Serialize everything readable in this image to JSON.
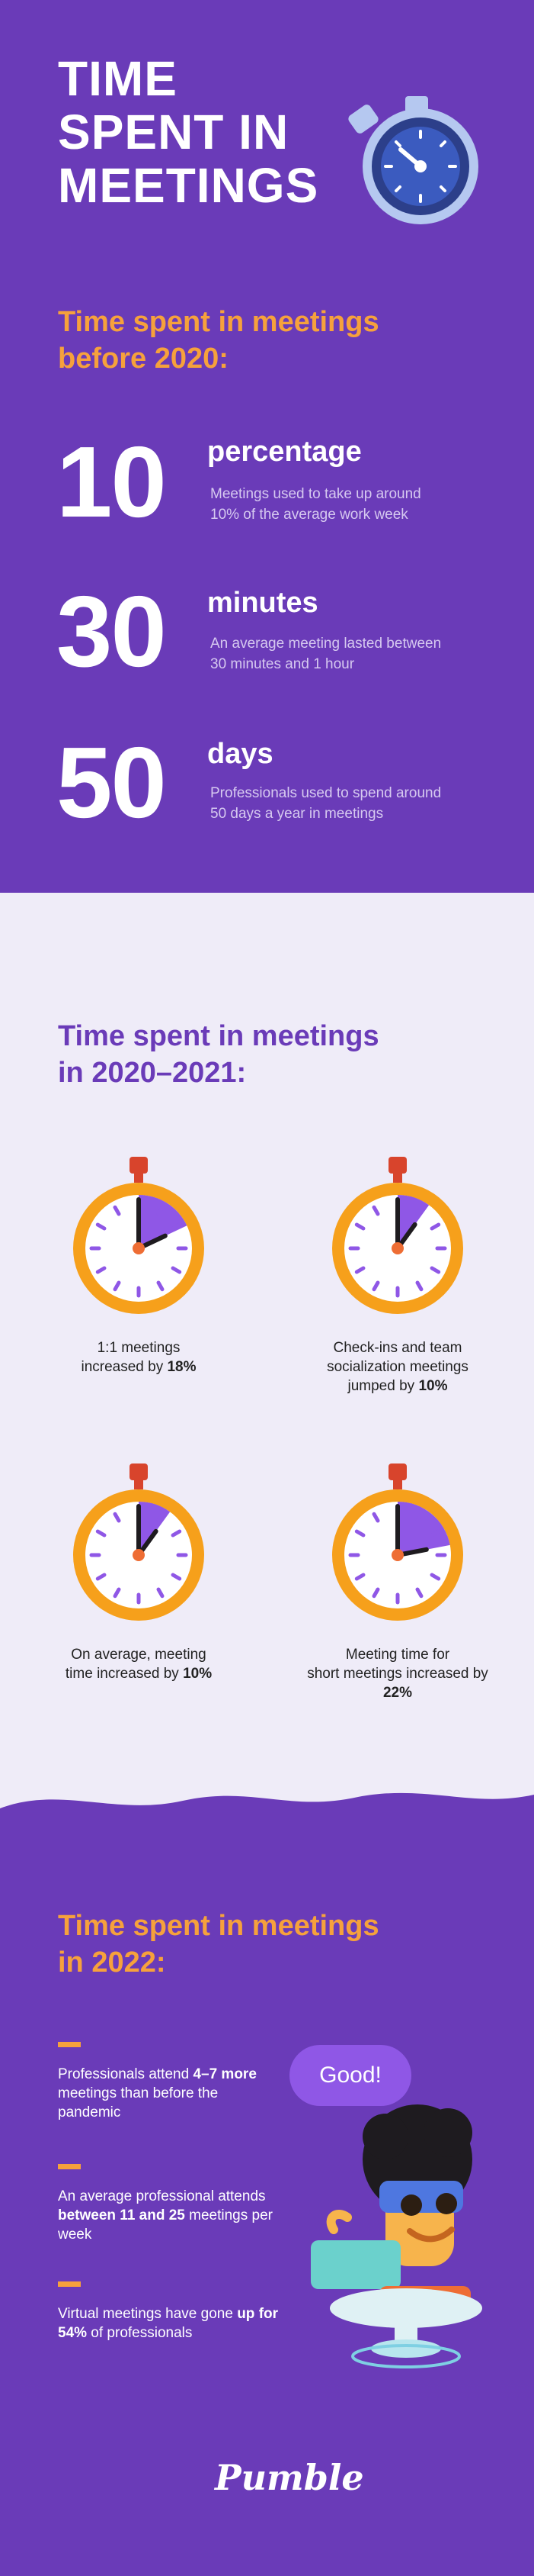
{
  "header": {
    "title_lines": [
      "TIME",
      "SPENT IN",
      "MEETINGS"
    ]
  },
  "before2020": {
    "heading_lines": [
      "Time spent in meetings",
      "before 2020:"
    ],
    "stats": [
      {
        "number": "10",
        "unit": "percentage",
        "desc_lines": [
          "Meetings used to take up around",
          "10% of the average work week"
        ]
      },
      {
        "number": "30",
        "unit": "minutes",
        "desc_lines": [
          "An average meeting lasted between",
          "30 minutes and 1 hour"
        ]
      },
      {
        "number": "50",
        "unit": "days",
        "desc_lines": [
          "Professionals used to spend around",
          "50 days a year in meetings"
        ]
      }
    ]
  },
  "period2020": {
    "heading_lines": [
      "Time spent in meetings",
      "in 2020–2021:"
    ],
    "clocks": [
      {
        "fraction": 0.18,
        "caption_pre": "1:1 meetings",
        "caption_mid": "increased by ",
        "caption_bold": "18%",
        "caption_post": ""
      },
      {
        "fraction": 0.1,
        "caption_pre": "Check-ins and team",
        "caption_mid": "socialization meetings jumped by ",
        "caption_bold": "10%",
        "caption_post": ""
      },
      {
        "fraction": 0.1,
        "caption_pre": "On average, meeting",
        "caption_mid": "time increased by ",
        "caption_bold": "10%",
        "caption_post": ""
      },
      {
        "fraction": 0.22,
        "caption_pre": "Meeting time for",
        "caption_mid": "short meetings increased by ",
        "caption_bold": "22%",
        "caption_post": ""
      }
    ]
  },
  "y2022": {
    "heading_lines": [
      "Time spent in meetings",
      "in 2022:"
    ],
    "items": [
      {
        "pre": "Professionals attend ",
        "bold": "4–7 more",
        "post": " meetings than before the pandemic"
      },
      {
        "pre": "An average professional attends ",
        "bold": "between 11 and 25",
        "post": " meetings per week"
      },
      {
        "pre": "Virtual meetings have gone ",
        "bold": "up for 54%",
        "post": " of professionals"
      }
    ],
    "bubble": "Good!"
  },
  "footer": {
    "logo": "Pumble"
  },
  "colors": {
    "purple": "#6a3bb8",
    "orange": "#f6a13c",
    "light_bg": "#efecf8",
    "accent_purple": "#8f57e6"
  }
}
